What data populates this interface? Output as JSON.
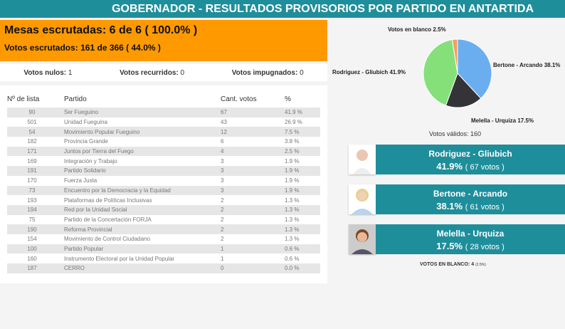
{
  "header": {
    "title": "GOBERNADOR - RESULTADOS PROVISORIOS POR PARTIDO EN ANTARTIDA"
  },
  "summary": {
    "mesas": "Mesas escrutadas: 6 de 6 ( 100.0% )",
    "votos": "Votos escrutados: 161 de 366 ( 44.0% )"
  },
  "counts": {
    "nulos_label": "Votos nulos:",
    "nulos": "1",
    "recurridos_label": "Votos recurridos:",
    "recurridos": "0",
    "impugnados_label": "Votos impugnados:",
    "impugnados": "0"
  },
  "table": {
    "headers": [
      "Nº de lista",
      "Partido",
      "Cant. votos",
      "%"
    ],
    "rows": [
      [
        "90",
        "Ser Fueguino",
        "67",
        "41.9 %"
      ],
      [
        "501",
        "Unidad Fueguina",
        "43",
        "26.9 %"
      ],
      [
        "54",
        "Movimiento Popular Fueguino",
        "12",
        "7.5 %"
      ],
      [
        "182",
        "Provincia Grande",
        "6",
        "3.8 %"
      ],
      [
        "171",
        "Juntos por Tierra del Fuego",
        "4",
        "2.5 %"
      ],
      [
        "169",
        "Integración y Trabajo",
        "3",
        "1.9 %"
      ],
      [
        "191",
        "Partido Solidario",
        "3",
        "1.9 %"
      ],
      [
        "170",
        "Fuerza Justa",
        "3",
        "1.9 %"
      ],
      [
        "73",
        "Encuentro por la Democracia y la Equidad",
        "3",
        "1.9 %"
      ],
      [
        "193",
        "Plataformas de Políticas Inclusivas",
        "2",
        "1.3 %"
      ],
      [
        "194",
        "Red por la Unidad Social",
        "2",
        "1.3 %"
      ],
      [
        "75",
        "Partido de la Concertación FORJA",
        "2",
        "1.3 %"
      ],
      [
        "190",
        "Reforma Provincial",
        "2",
        "1.3 %"
      ],
      [
        "154",
        "Movimiento de Control Ciudadano",
        "2",
        "1.3 %"
      ],
      [
        "100",
        "Partido Popular",
        "1",
        "0.6 %"
      ],
      [
        "160",
        "Instrumento Electoral por la Unidad Popular",
        "1",
        "0.6 %"
      ],
      [
        "187",
        "CERRO",
        "0",
        "0.0 %"
      ]
    ]
  },
  "chart_data": {
    "type": "pie",
    "slices": [
      {
        "label": "Bertone - Arcando 38.1%",
        "value": 38.1,
        "color": "#6aaef0"
      },
      {
        "label": "Melella - Urquiza 17.5%",
        "value": 17.5,
        "color": "#333338"
      },
      {
        "label": "Rodriguez - Gliubich 41.9%",
        "value": 41.9,
        "color": "#86e07a"
      },
      {
        "label": "Votos en blanco 2.5%",
        "value": 2.5,
        "color": "#f4a060"
      }
    ],
    "caption": "Votos válidos: 160"
  },
  "candidates": [
    {
      "name": "Rodriguez - Gliubich",
      "pct": "41.9%",
      "votes": "( 67 votos )"
    },
    {
      "name": "Bertone - Arcando",
      "pct": "38.1%",
      "votes": "( 61 votos )"
    },
    {
      "name": "Melella - Urquiza",
      "pct": "17.5%",
      "votes": "( 28 votos )"
    }
  ],
  "blanco": {
    "label": "VOTOS EN BLANCO: 4",
    "pct": "(2.5%)"
  }
}
